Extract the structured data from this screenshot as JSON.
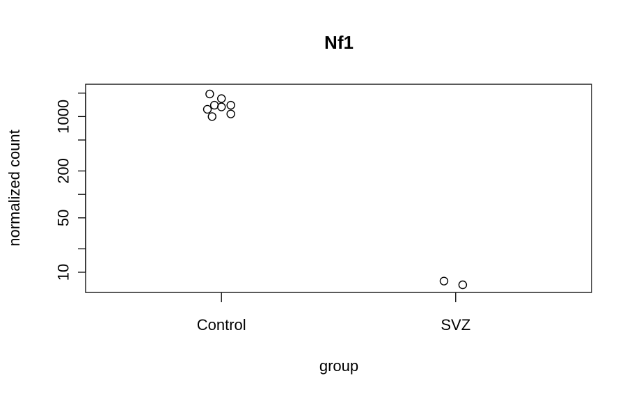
{
  "chart_data": {
    "type": "scatter",
    "title": "Nf1",
    "xlabel": "group",
    "ylabel": "normalized count",
    "y_scale": "log",
    "ylim": [
      5.5,
      2600
    ],
    "categories": [
      "Control",
      "SVZ"
    ],
    "y_ticks": [
      {
        "value": 2000,
        "label": ""
      },
      {
        "value": 1000,
        "label": "1000"
      },
      {
        "value": 500,
        "label": ""
      },
      {
        "value": 200,
        "label": "200"
      },
      {
        "value": 100,
        "label": ""
      },
      {
        "value": 50,
        "label": "50"
      },
      {
        "value": 20,
        "label": ""
      },
      {
        "value": 10,
        "label": "10"
      }
    ],
    "points": [
      {
        "category": "Control",
        "jitter": -0.05,
        "y": 1950
      },
      {
        "category": "Control",
        "jitter": 0.0,
        "y": 1700
      },
      {
        "category": "Control",
        "jitter": 0.04,
        "y": 1400
      },
      {
        "category": "Control",
        "jitter": -0.03,
        "y": 1400
      },
      {
        "category": "Control",
        "jitter": 0.0,
        "y": 1330
      },
      {
        "category": "Control",
        "jitter": -0.06,
        "y": 1240
      },
      {
        "category": "Control",
        "jitter": 0.04,
        "y": 1080
      },
      {
        "category": "Control",
        "jitter": -0.04,
        "y": 1000
      },
      {
        "category": "SVZ",
        "jitter": -0.05,
        "y": 7.7
      },
      {
        "category": "SVZ",
        "jitter": 0.03,
        "y": 6.9
      }
    ],
    "grid": false,
    "legend": "none"
  }
}
